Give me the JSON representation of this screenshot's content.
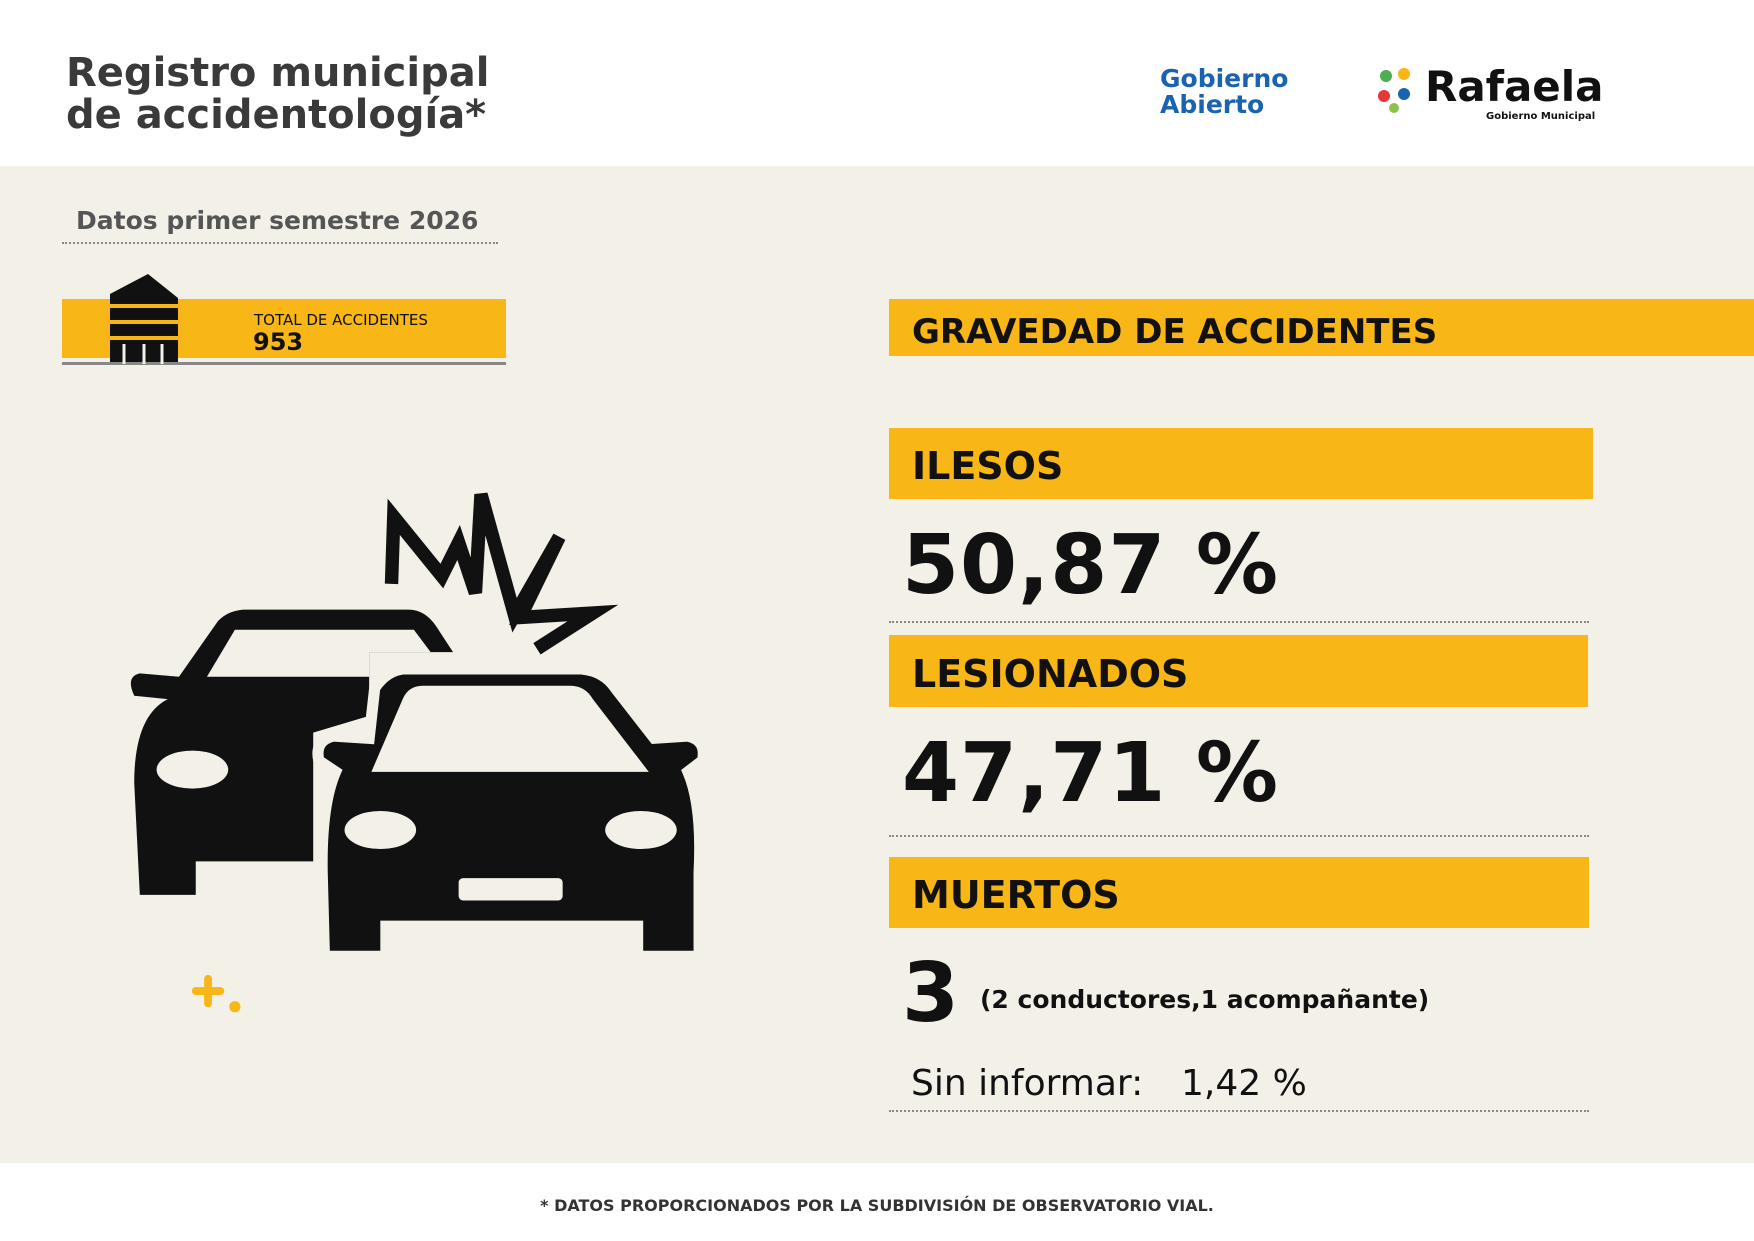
{
  "header": {
    "title_line1": "Registro municipal",
    "title_line2": "de accidentología*",
    "logo_left_line1": "Gobierno",
    "logo_left_line2": "Abierto",
    "logo_right": "Rafaela",
    "logo_right_sub": "Gobierno Municipal"
  },
  "period": "Datos primer semestre 2026",
  "total": {
    "label": "TOTAL DE ACCIDENTES",
    "value": "953"
  },
  "severity": {
    "title": "GRAVEDAD DE ACCIDENTES",
    "items": [
      {
        "label": "ILESOS",
        "value": "50,87 %"
      },
      {
        "label": "LESIONADOS",
        "value": "47,71 %"
      },
      {
        "label": "MUERTOS",
        "value": "3",
        "detail": "(2 conductores,1 acompañante)"
      }
    ],
    "unreported": {
      "label": "Sin informar:",
      "value": "1,42 %"
    }
  },
  "footnote": "* DATOS PROPORCIONADOS POR LA SUBDIVISIÓN DE OBSERVATORIO VIAL."
}
